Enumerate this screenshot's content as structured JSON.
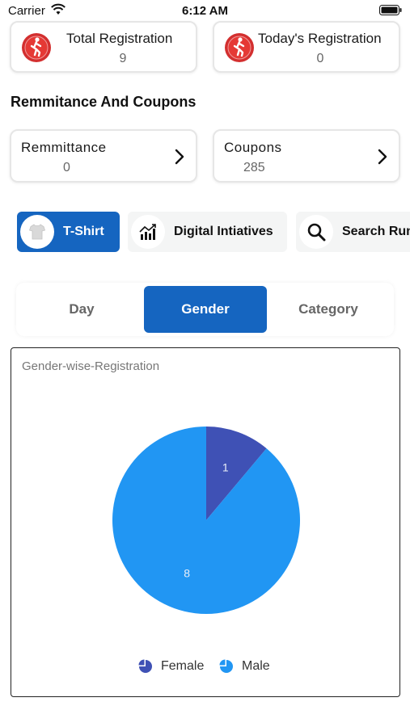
{
  "status_bar": {
    "carrier": "Carrier",
    "time": "6:12 AM"
  },
  "registration": {
    "total": {
      "label": "Total Registration",
      "value": "9"
    },
    "today": {
      "label": "Today's Registration",
      "value": "0"
    }
  },
  "section": {
    "title": "Remmitance And Coupons"
  },
  "remittance": {
    "label": "Remmittance",
    "value": "0"
  },
  "coupons": {
    "label": "Coupons",
    "value": "285"
  },
  "chips": [
    {
      "label": "T-Shirt",
      "icon": "tshirt-icon"
    },
    {
      "label": "Digital Intiatives",
      "icon": "bar-chart-icon"
    },
    {
      "label": "Search Runner",
      "icon": "search-icon"
    }
  ],
  "segments": {
    "day": "Day",
    "gender": "Gender",
    "category": "Category",
    "selected": "gender"
  },
  "colors": {
    "primary": "#1565c0",
    "female": "#3f51b5",
    "male": "#2196f3",
    "runner_red": "#d32f2f"
  },
  "chart_data": {
    "type": "pie",
    "title": "Gender-wise-Registration",
    "categories": [
      "Female",
      "Male"
    ],
    "values": [
      1,
      8
    ],
    "data_labels": [
      "1",
      "8"
    ],
    "colors": [
      "#3f51b5",
      "#2196f3"
    ],
    "legend_position": "bottom"
  }
}
